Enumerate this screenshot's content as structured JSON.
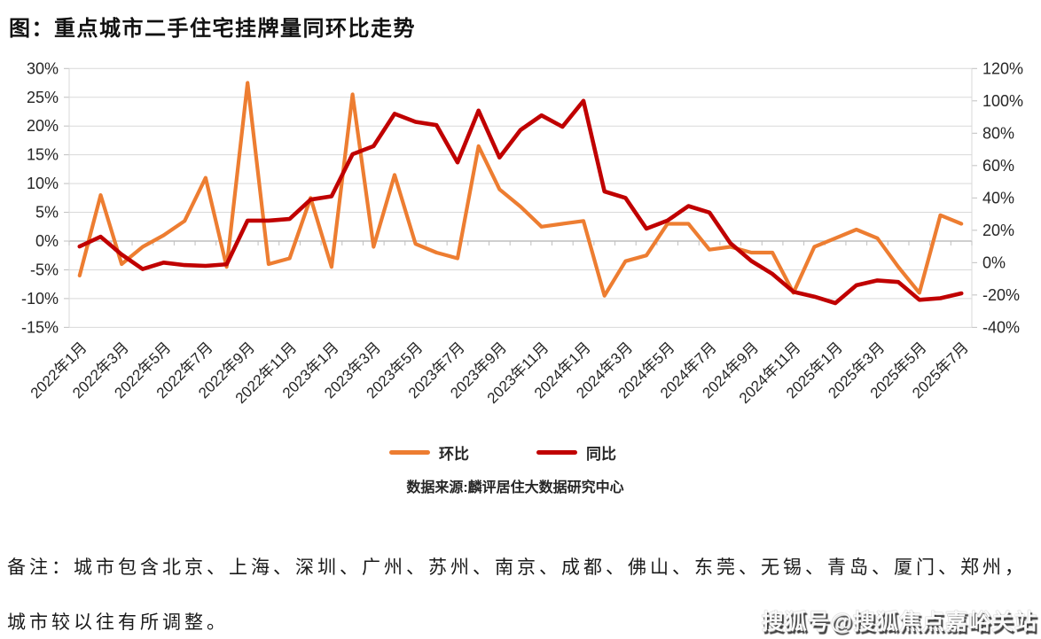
{
  "title": "图：重点城市二手住宅挂牌量同环比走势",
  "source": "数据来源:麟评居住大数据研究中心",
  "note_line1": "备注：城市包含北京、上海、深圳、广州、苏州、南京、成都、佛山、东莞、无锡、青岛、厦门、郑州，",
  "note_line2": "城市较以往有所调整。",
  "watermark": "搜狐号@搜狐焦点嘉峪关站",
  "legend": {
    "items": [
      {
        "label": "环比",
        "color": "#ED7D31"
      },
      {
        "label": "同比",
        "color": "#C00000"
      }
    ]
  },
  "chart_data": {
    "type": "line",
    "title": "重点城市二手住宅挂牌量同环比走势",
    "x": [
      "2022年1月",
      "2022年2月",
      "2022年3月",
      "2022年4月",
      "2022年5月",
      "2022年6月",
      "2022年7月",
      "2022年8月",
      "2022年9月",
      "2022年10月",
      "2022年11月",
      "2022年12月",
      "2023年1月",
      "2023年2月",
      "2023年3月",
      "2023年4月",
      "2023年5月",
      "2023年6月",
      "2023年7月",
      "2023年8月",
      "2023年9月",
      "2023年10月",
      "2023年11月",
      "2023年12月",
      "2024年1月",
      "2024年2月",
      "2024年3月",
      "2024年4月",
      "2024年5月",
      "2024年6月",
      "2024年7月",
      "2024年8月",
      "2024年9月",
      "2024年10月",
      "2024年11月",
      "2024年12月",
      "2025年1月",
      "2025年2月",
      "2025年3月",
      "2025年4月",
      "2025年5月",
      "2025年6月",
      "2025年7月"
    ],
    "x_label_every": 2,
    "series": [
      {
        "name": "环比",
        "axis": "left",
        "color": "#ED7D31",
        "values": [
          -6,
          8,
          -4,
          -1,
          1,
          3.5,
          11,
          -4.5,
          27.5,
          -4,
          -3,
          7.5,
          -4.5,
          25.5,
          -1,
          11.5,
          -0.5,
          -2,
          -3,
          16.5,
          9,
          6,
          2.5,
          3,
          3.5,
          -9.5,
          -3.5,
          -2.5,
          3,
          3,
          -1.5,
          -1,
          -2,
          -2,
          -9,
          -1,
          0.5,
          2,
          0.5,
          -4.5,
          -9,
          4.5,
          3
        ]
      },
      {
        "name": "同比",
        "axis": "right",
        "color": "#C00000",
        "values": [
          10,
          16,
          5,
          -4,
          0,
          -1.5,
          -2,
          -1,
          26,
          26,
          27,
          39,
          41,
          67,
          72,
          92,
          87,
          85,
          62,
          94,
          65,
          82,
          91,
          84,
          100,
          44,
          40,
          21,
          26,
          35,
          31,
          12,
          1,
          -7,
          -18,
          -21,
          -25,
          -14,
          -11,
          -12,
          -23,
          -22,
          -19
        ]
      }
    ],
    "left_axis": {
      "min": -15,
      "max": 30,
      "step": 5,
      "unit": "%"
    },
    "right_axis": {
      "min": -40,
      "max": 120,
      "step": 20,
      "unit": "%"
    },
    "grid": true,
    "grid_color": "#D9D9D9",
    "axis_color": "#BFBFBF",
    "label_color": "#262626",
    "legend_position": "bottom"
  }
}
